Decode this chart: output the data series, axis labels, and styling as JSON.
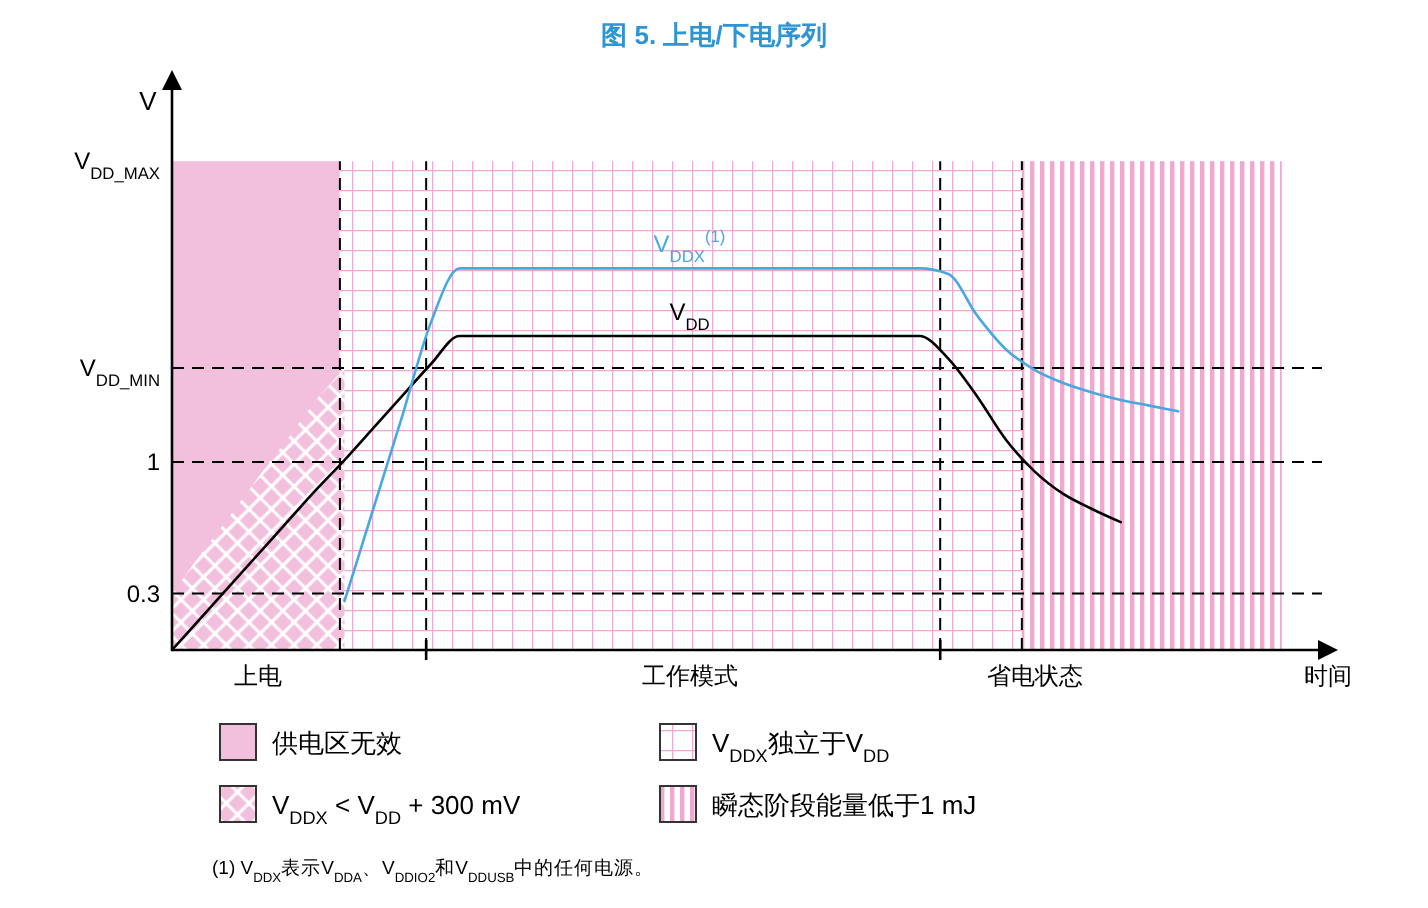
{
  "chart_data": {
    "type": "line",
    "title": "图 5. 上电/下电序列",
    "xlabel": "时间",
    "ylabel": "V",
    "categories": [
      null,
      null,
      null,
      "上电",
      null,
      null,
      null,
      null,
      null,
      null,
      null,
      null,
      null,
      null,
      null,
      null,
      null,
      null,
      "工作模式",
      null,
      null,
      null,
      null,
      null,
      null,
      null,
      null,
      null,
      null,
      null,
      "省电状态",
      null,
      null,
      null,
      null,
      null,
      null,
      null,
      null,
      null,
      null
    ],
    "ylim": [
      0,
      3
    ],
    "yticks": [
      {
        "value": 0.3,
        "label": "0.3"
      },
      {
        "value": 1,
        "label": "1"
      },
      {
        "value": 1.5,
        "label": "V$_{DD_MIN}$"
      },
      {
        "value": 2.6,
        "label": "V$_{DD_MAX}$"
      }
    ],
    "series": [
      {
        "type": "area",
        "name": "V$_{DDX}$ < V$_{DD}$ + 300 mV",
        "color": "#f2bfdc",
        "values": [
          0.3,
          0.51,
          0.71,
          0.92,
          1.12,
          1.33,
          1.5,
          null,
          null,
          null,
          null,
          null,
          null,
          null,
          null,
          null,
          null,
          null,
          null,
          null,
          null,
          null,
          null,
          null,
          null,
          null,
          null,
          null,
          null,
          null,
          null,
          null,
          null,
          null,
          null,
          null,
          null,
          null,
          null,
          null,
          null
        ]
      },
      {
        "name": "V$_{DD}$",
        "color": "#000000",
        "values": [
          0,
          0.17,
          0.34,
          0.51,
          0.68,
          0.85,
          1.01,
          1.18,
          1.35,
          1.52,
          1.67,
          1.67,
          1.67,
          1.67,
          1.67,
          1.67,
          1.67,
          1.67,
          1.67,
          1.67,
          1.67,
          1.67,
          1.67,
          1.67,
          1.67,
          1.67,
          1.67,
          1.55,
          1.35,
          1.12,
          0.95,
          0.83,
          0.75,
          0.68,
          null,
          null,
          null,
          null,
          null,
          null,
          null
        ]
      },
      {
        "name": "V$_{DDX}$$^{(1)}$",
        "color": "#4aa8e0",
        "values": [
          null,
          null,
          null,
          null,
          null,
          null,
          0.26,
          0.75,
          1.24,
          1.74,
          2.03,
          2.03,
          2.03,
          2.03,
          2.03,
          2.03,
          2.03,
          2.03,
          2.03,
          2.03,
          2.03,
          2.03,
          2.03,
          2.03,
          2.03,
          2.03,
          2.03,
          2.0,
          1.78,
          1.6,
          1.49,
          1.42,
          1.37,
          1.33,
          1.3,
          1.27,
          null,
          null,
          null,
          null,
          null
        ]
      }
    ],
    "ref_lines": [
      {
        "axis": "y",
        "value": 0.3,
        "line_style": "dashed",
        "color": "#000000"
      },
      {
        "axis": "y",
        "value": 1,
        "line_style": "dashed",
        "color": "#000000"
      },
      {
        "axis": "y",
        "value": 1.5,
        "line_style": "dashed",
        "color": "#000000"
      }
    ],
    "legend": "bottom",
    "annotations": [
      "供电区无效",
      "V$_{DDX}$独立于V$_{DD}$",
      "瞬态阶段能量低于1 mJ",
      "(1) V$_{DDX}$表示V$_{DDA}$、V$_{DDIO2}$和V$_{DDUSB}$中的任何电源。"
    ]
  }
}
